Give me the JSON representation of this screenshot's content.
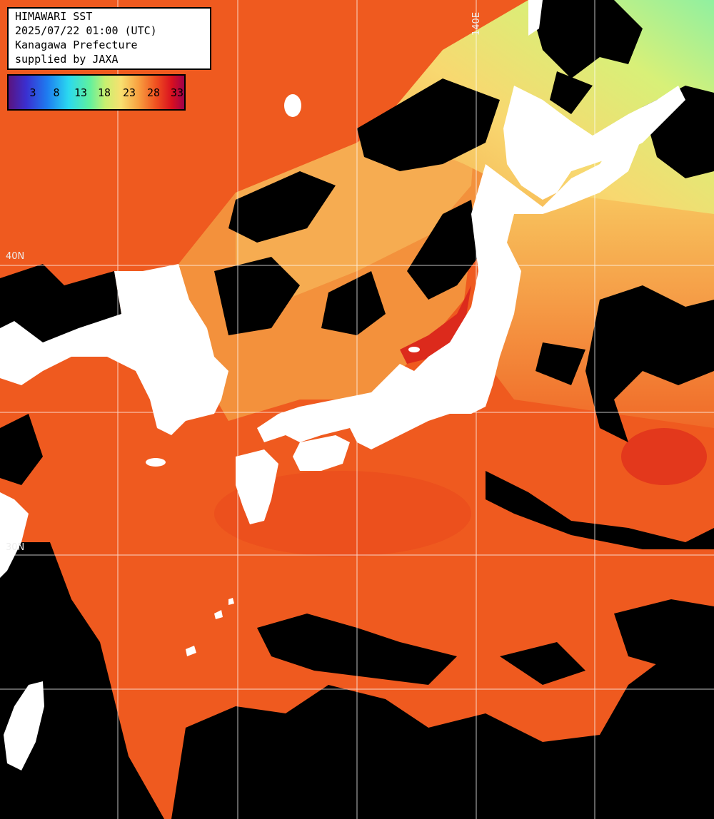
{
  "header": {
    "line1": "HIMAWARI SST",
    "line2": "2025/07/22 01:00 (UTC)",
    "line3": "Kanagawa Prefecture",
    "line4": "supplied by JAXA"
  },
  "legend": {
    "ticks": [
      "3",
      "8",
      "13",
      "18",
      "23",
      "28",
      "33"
    ]
  },
  "grid_labels": {
    "lat_30": "30N",
    "lon_140": "140E",
    "lat_40": "40N"
  },
  "colors": {
    "land": "#ffffff",
    "cloud": "#000000",
    "sea_warm": "#f05a1e",
    "sea_hot": "#e8321a",
    "sea_mild": "#f8a048",
    "sea_cool": "#f0f080",
    "sea_cold": "#90f090",
    "grid": "#ffffff"
  }
}
